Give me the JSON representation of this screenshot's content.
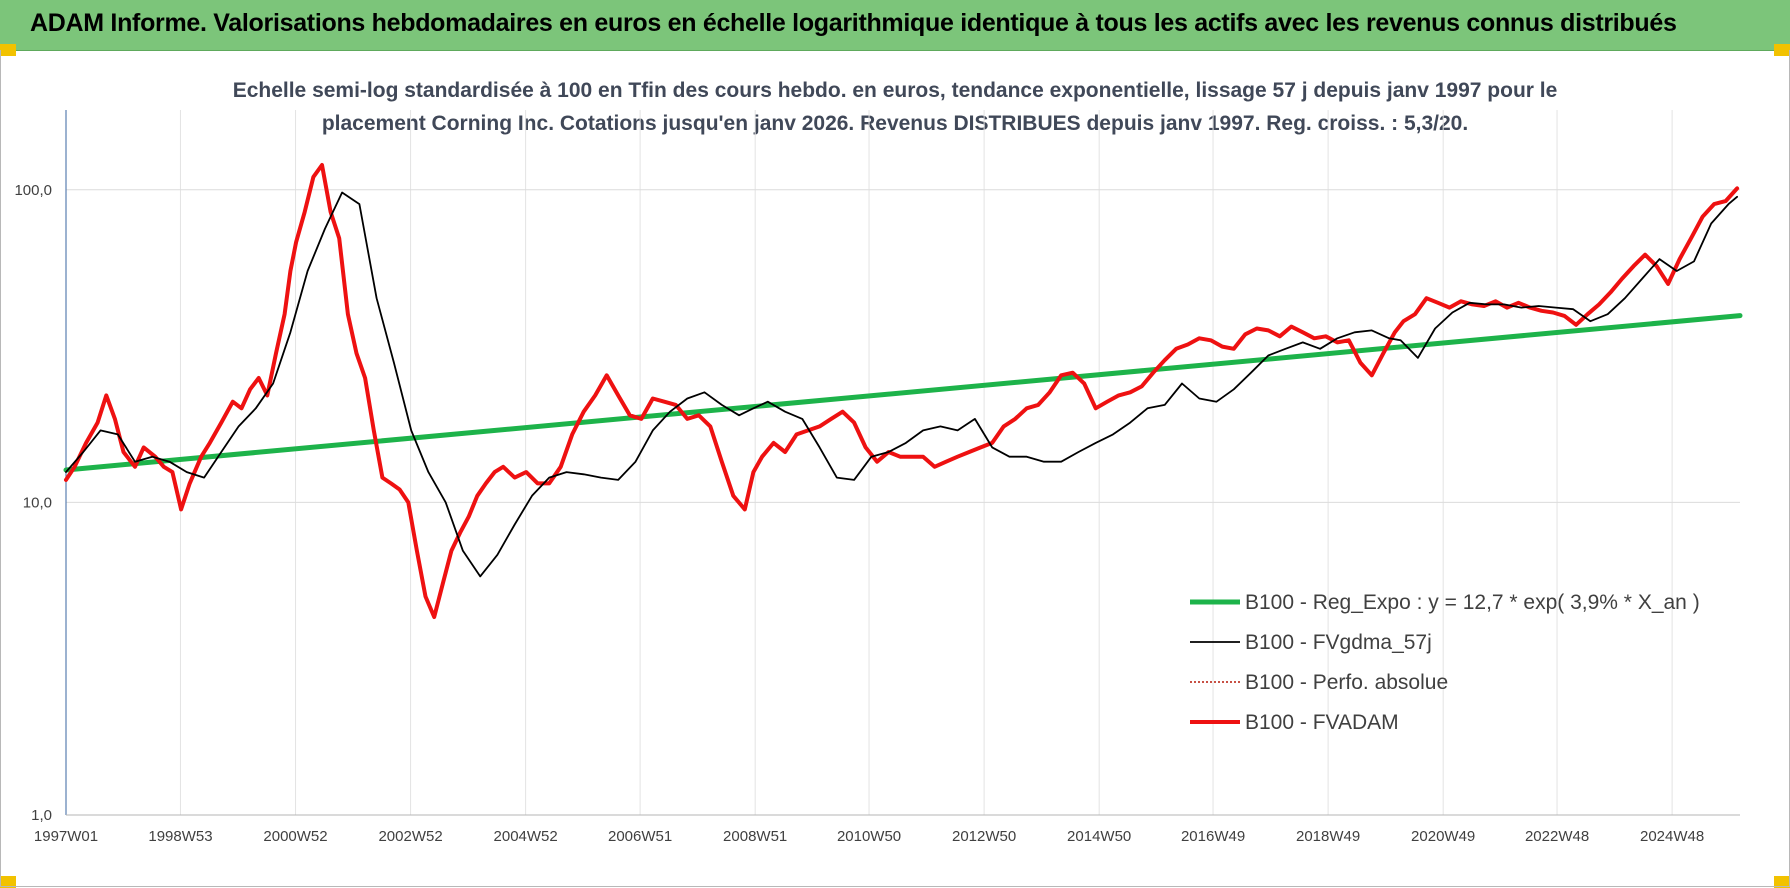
{
  "header": {
    "title": "ADAM Informe. Valorisations hebdomadaires en euros en échelle logarithmique identique à tous les actifs avec les revenus connus distribués"
  },
  "chart_data": {
    "type": "line",
    "title_line1": "Echelle semi-log standardisée à 100 en Tfin des cours hebdo. en euros, tendance exponentielle, lissage 57 j depuis janv 1997 pour le",
    "title_line2": "placement Corning Inc. Cotations jusqu'en janv 2026. Revenus DISTRIBUES depuis janv 1997. Reg. croiss. : 5,3/20.",
    "y_scale": "log",
    "ylim": [
      1,
      180
    ],
    "y_ticks": [
      {
        "value": 1,
        "label": "1,0"
      },
      {
        "value": 10,
        "label": "10,0"
      },
      {
        "value": 100,
        "label": "100,0"
      }
    ],
    "xlim": [
      1997.0,
      2026.1
    ],
    "x_ticks": [
      {
        "year": 1997.0,
        "label": "1997W01"
      },
      {
        "year": 1998.99,
        "label": "1998W53"
      },
      {
        "year": 2000.99,
        "label": "2000W52"
      },
      {
        "year": 2002.99,
        "label": "2002W52"
      },
      {
        "year": 2004.99,
        "label": "2004W52"
      },
      {
        "year": 2006.98,
        "label": "2006W51"
      },
      {
        "year": 2008.98,
        "label": "2008W51"
      },
      {
        "year": 2010.96,
        "label": "2010W50"
      },
      {
        "year": 2012.96,
        "label": "2012W50"
      },
      {
        "year": 2014.96,
        "label": "2014W50"
      },
      {
        "year": 2016.94,
        "label": "2016W49"
      },
      {
        "year": 2018.94,
        "label": "2018W49"
      },
      {
        "year": 2020.94,
        "label": "2020W49"
      },
      {
        "year": 2022.92,
        "label": "2022W48"
      },
      {
        "year": 2024.92,
        "label": "2024W48"
      }
    ],
    "grid": true,
    "legend_position": "bottom-right",
    "series": [
      {
        "name": "B100 - Reg_Expo : y = 12,7 * exp( 3,9% *  X_an )",
        "color": "#1db34a",
        "style": "solid-thick",
        "x": [
          1997.0,
          2026.1
        ],
        "y": [
          12.7,
          39.6
        ]
      },
      {
        "name": "B100 - FVgdma_57j",
        "color": "#000000",
        "style": "solid-thin",
        "x": [
          1997.0,
          1997.3,
          1997.6,
          1997.9,
          1998.2,
          1998.5,
          1998.8,
          1999.1,
          1999.4,
          1999.7,
          2000.0,
          2000.3,
          2000.6,
          2000.9,
          2001.2,
          2001.5,
          2001.8,
          2002.1,
          2002.4,
          2002.7,
          2003.0,
          2003.3,
          2003.6,
          2003.9,
          2004.2,
          2004.5,
          2004.8,
          2005.1,
          2005.4,
          2005.7,
          2006.0,
          2006.3,
          2006.6,
          2006.9,
          2007.2,
          2007.5,
          2007.8,
          2008.1,
          2008.4,
          2008.7,
          2008.95,
          2009.2,
          2009.5,
          2009.8,
          2010.1,
          2010.4,
          2010.7,
          2011.0,
          2011.3,
          2011.6,
          2011.9,
          2012.2,
          2012.5,
          2012.8,
          2013.1,
          2013.4,
          2013.7,
          2014.0,
          2014.3,
          2014.6,
          2014.9,
          2015.2,
          2015.5,
          2015.8,
          2016.1,
          2016.4,
          2016.7,
          2017.0,
          2017.3,
          2017.6,
          2017.9,
          2018.2,
          2018.5,
          2018.8,
          2019.1,
          2019.4,
          2019.7,
          2020.0,
          2020.2,
          2020.5,
          2020.8,
          2021.1,
          2021.4,
          2021.7,
          2022.0,
          2022.3,
          2022.6,
          2022.9,
          2023.2,
          2023.5,
          2023.8,
          2024.1,
          2024.4,
          2024.7,
          2025.0,
          2025.3,
          2025.6,
          2025.9,
          2026.05
        ],
        "y": [
          12.5,
          14.5,
          17.0,
          16.5,
          13.5,
          14.0,
          13.5,
          12.5,
          12.0,
          14.5,
          17.5,
          20.0,
          24.0,
          35.0,
          55.0,
          75.0,
          98.0,
          90.0,
          45.0,
          28.0,
          17.0,
          12.5,
          10.0,
          7.0,
          5.8,
          6.8,
          8.5,
          10.5,
          12.0,
          12.5,
          12.3,
          12.0,
          11.8,
          13.5,
          17.0,
          19.5,
          21.5,
          22.5,
          20.5,
          19.0,
          20.0,
          21.0,
          19.5,
          18.5,
          15.0,
          12.0,
          11.8,
          14.0,
          14.5,
          15.5,
          17.0,
          17.5,
          17.0,
          18.5,
          15.0,
          14.0,
          14.0,
          13.5,
          13.5,
          14.5,
          15.5,
          16.5,
          18.0,
          20.0,
          20.5,
          24.0,
          21.5,
          21.0,
          23.0,
          26.0,
          29.5,
          31.0,
          32.5,
          31.0,
          33.5,
          35.0,
          35.5,
          33.5,
          33.0,
          29.0,
          36.0,
          40.5,
          43.5,
          43.0,
          43.0,
          42.0,
          42.5,
          42.0,
          41.5,
          38.0,
          40.0,
          45.0,
          52.0,
          60.0,
          55.0,
          59.0,
          78.0,
          90.0,
          95.0
        ]
      },
      {
        "name": "B100 - Perfo. absolue",
        "color": "#c0392b",
        "style": "dotted",
        "x": [],
        "y": []
      },
      {
        "name": "B100 - FVADAM",
        "color": "#ee1111",
        "style": "solid-thick",
        "x": [
          1997.0,
          1997.15,
          1997.35,
          1997.55,
          1997.7,
          1997.85,
          1998.0,
          1998.2,
          1998.35,
          1998.55,
          1998.7,
          1998.85,
          1999.0,
          1999.15,
          1999.35,
          1999.5,
          1999.7,
          1999.9,
          2000.05,
          2000.2,
          2000.35,
          2000.5,
          2000.65,
          2000.8,
          2000.9,
          2001.0,
          2001.15,
          2001.3,
          2001.45,
          2001.6,
          2001.75,
          2001.9,
          2002.05,
          2002.2,
          2002.35,
          2002.5,
          2002.65,
          2002.8,
          2002.95,
          2003.1,
          2003.25,
          2003.4,
          2003.55,
          2003.7,
          2003.85,
          2004.0,
          2004.15,
          2004.3,
          2004.45,
          2004.6,
          2004.8,
          2005.0,
          2005.2,
          2005.4,
          2005.6,
          2005.8,
          2006.0,
          2006.2,
          2006.4,
          2006.6,
          2006.8,
          2007.0,
          2007.2,
          2007.4,
          2007.6,
          2007.8,
          2008.0,
          2008.2,
          2008.4,
          2008.6,
          2008.8,
          2008.95,
          2009.1,
          2009.3,
          2009.5,
          2009.7,
          2009.9,
          2010.1,
          2010.3,
          2010.5,
          2010.7,
          2010.9,
          2011.1,
          2011.3,
          2011.5,
          2011.7,
          2011.9,
          2012.1,
          2012.3,
          2012.5,
          2012.7,
          2012.9,
          2013.1,
          2013.3,
          2013.5,
          2013.7,
          2013.9,
          2014.1,
          2014.3,
          2014.5,
          2014.7,
          2014.9,
          2015.1,
          2015.3,
          2015.5,
          2015.7,
          2015.9,
          2016.1,
          2016.3,
          2016.5,
          2016.7,
          2016.9,
          2017.1,
          2017.3,
          2017.5,
          2017.7,
          2017.9,
          2018.1,
          2018.3,
          2018.5,
          2018.7,
          2018.9,
          2019.1,
          2019.3,
          2019.5,
          2019.7,
          2019.9,
          2020.1,
          2020.25,
          2020.45,
          2020.65,
          2020.85,
          2021.05,
          2021.25,
          2021.45,
          2021.65,
          2021.85,
          2022.05,
          2022.25,
          2022.45,
          2022.65,
          2022.85,
          2023.05,
          2023.25,
          2023.45,
          2023.65,
          2023.85,
          2024.05,
          2024.25,
          2024.45,
          2024.65,
          2024.85,
          2025.05,
          2025.25,
          2025.45,
          2025.65,
          2025.85,
          2026.05
        ],
        "y": [
          11.8,
          13.0,
          15.5,
          18.0,
          22.0,
          18.5,
          14.5,
          13.0,
          15.0,
          14.0,
          13.0,
          12.5,
          9.5,
          11.5,
          14.0,
          15.5,
          18.0,
          21.0,
          20.0,
          23.0,
          25.0,
          22.0,
          30.0,
          40.0,
          55.0,
          68.0,
          85.0,
          110.0,
          120.0,
          85.0,
          70.0,
          40.0,
          30.0,
          25.0,
          17.0,
          12.0,
          11.5,
          11.0,
          10.0,
          7.0,
          5.0,
          4.3,
          5.5,
          7.0,
          8.0,
          9.0,
          10.5,
          11.5,
          12.5,
          13.0,
          12.0,
          12.5,
          11.5,
          11.5,
          13.0,
          16.5,
          19.5,
          22.0,
          25.5,
          22.0,
          19.0,
          18.5,
          21.5,
          21.0,
          20.5,
          18.5,
          19.0,
          17.5,
          13.5,
          10.5,
          9.5,
          12.5,
          14.0,
          15.5,
          14.5,
          16.5,
          17.0,
          17.5,
          18.5,
          19.5,
          18.0,
          15.0,
          13.5,
          14.5,
          14.0,
          14.0,
          14.0,
          13.0,
          13.5,
          14.0,
          14.5,
          15.0,
          15.5,
          17.5,
          18.5,
          20.0,
          20.5,
          22.5,
          25.5,
          26.0,
          24.0,
          20.0,
          21.0,
          22.0,
          22.5,
          23.5,
          26.0,
          28.5,
          31.0,
          32.0,
          33.5,
          33.0,
          31.5,
          31.0,
          34.5,
          36.0,
          35.5,
          34.0,
          36.5,
          35.0,
          33.5,
          34.0,
          32.5,
          33.0,
          28.0,
          25.5,
          30.0,
          35.0,
          38.0,
          40.0,
          45.0,
          43.5,
          42.0,
          44.0,
          43.0,
          42.5,
          44.0,
          42.0,
          43.5,
          42.0,
          41.0,
          40.5,
          39.5,
          37.0,
          40.0,
          43.0,
          47.0,
          52.0,
          57.0,
          62.0,
          57.0,
          50.0,
          60.0,
          70.0,
          82.0,
          90.0,
          92.0,
          101.0
        ]
      }
    ]
  }
}
